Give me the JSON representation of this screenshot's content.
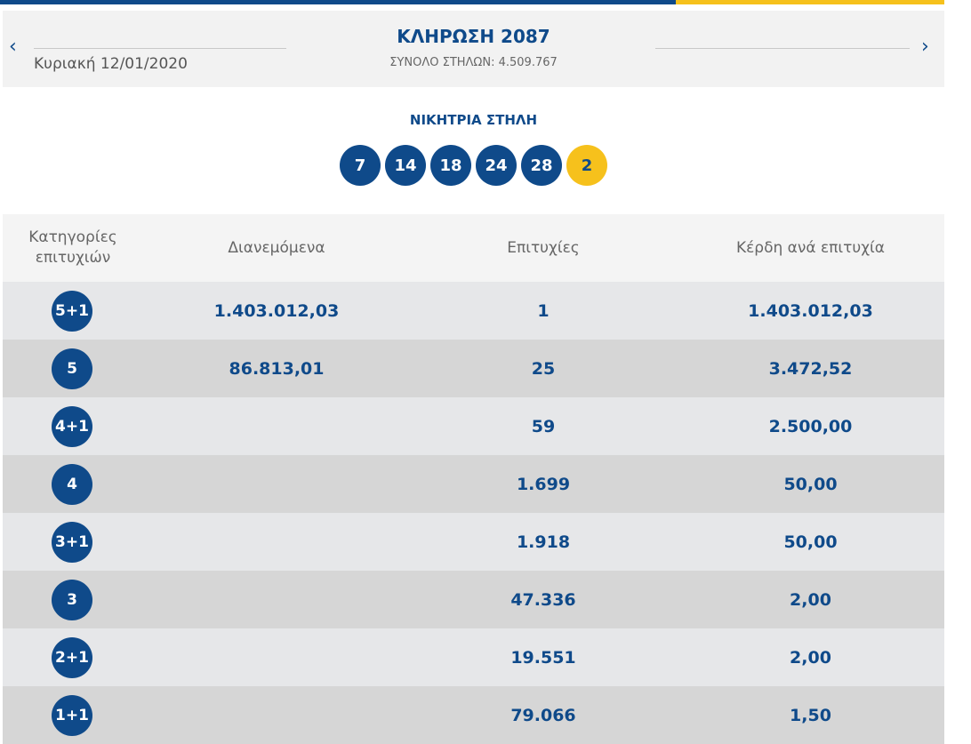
{
  "colors": {
    "brand_blue": "#0f4a8a",
    "accent_yellow": "#f6c11c",
    "header_bg": "#f2f2f2",
    "row_light": "#e6e7e9",
    "row_dark": "#d6d6d6"
  },
  "header": {
    "prev_icon": "chevron-left-icon",
    "next_icon": "chevron-right-icon",
    "prev_glyph": "‹",
    "next_glyph": "›",
    "date": "Κυριακή 12/01/2020",
    "draw_title": "ΚΛΗΡΩΣΗ 2087",
    "total_columns": "ΣΥΝΟΛΟ ΣΤΗΛΩΝ: 4.509.767"
  },
  "winning": {
    "title": "ΝΙΚΗΤΡΙΑ ΣΤΗΛΗ",
    "numbers": [
      "7",
      "14",
      "18",
      "24",
      "28"
    ],
    "joker": "2"
  },
  "table": {
    "headers": {
      "category_line1": "Κατηγορίες",
      "category_line2": "επιτυχιών",
      "distributed": "Διανεμόμενα",
      "winners": "Επιτυχίες",
      "prize": "Κέρδη ανά επιτυχία"
    },
    "rows": [
      {
        "category": "5+1",
        "distributed": "1.403.012,03",
        "winners": "1",
        "prize": "1.403.012,03"
      },
      {
        "category": "5",
        "distributed": "86.813,01",
        "winners": "25",
        "prize": "3.472,52"
      },
      {
        "category": "4+1",
        "distributed": "",
        "winners": "59",
        "prize": "2.500,00"
      },
      {
        "category": "4",
        "distributed": "",
        "winners": "1.699",
        "prize": "50,00"
      },
      {
        "category": "3+1",
        "distributed": "",
        "winners": "1.918",
        "prize": "50,00"
      },
      {
        "category": "3",
        "distributed": "",
        "winners": "47.336",
        "prize": "2,00"
      },
      {
        "category": "2+1",
        "distributed": "",
        "winners": "19.551",
        "prize": "2,00"
      },
      {
        "category": "1+1",
        "distributed": "",
        "winners": "79.066",
        "prize": "1,50"
      }
    ]
  }
}
